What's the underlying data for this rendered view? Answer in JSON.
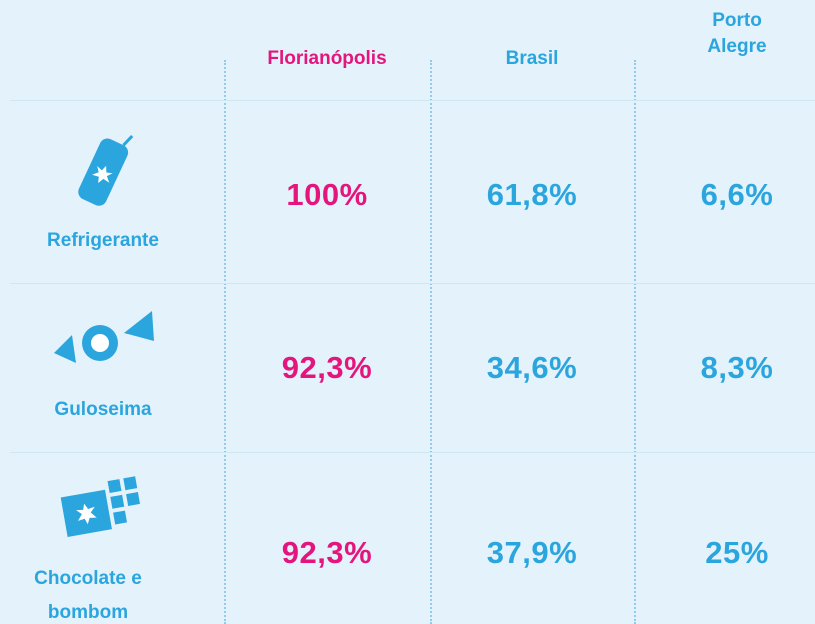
{
  "table": {
    "columns": [
      "Florianópolis",
      "Brasil",
      "Porto Alegre"
    ],
    "rows": [
      {
        "label": "Refrigerante",
        "values": [
          "100%",
          "61,8%",
          "6,6%"
        ]
      },
      {
        "label": "Guloseima",
        "values": [
          "92,3%",
          "34,6%",
          "8,3%"
        ]
      },
      {
        "label": "Chocolate e bombom",
        "values": [
          "92,3%",
          "37,9%",
          "25%"
        ]
      }
    ]
  }
}
